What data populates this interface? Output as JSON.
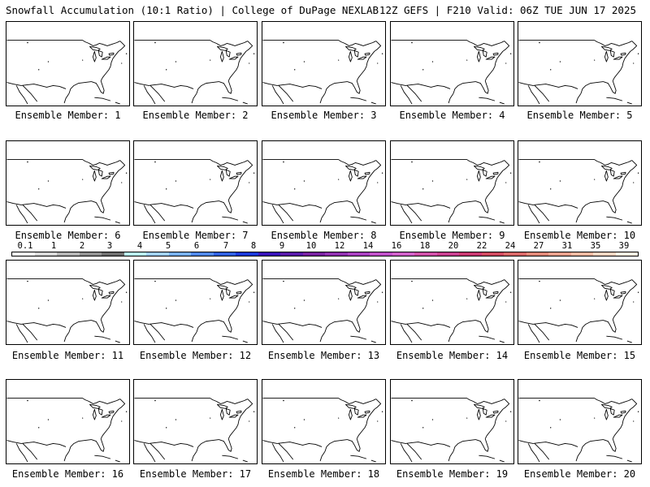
{
  "header": {
    "left_title": "Snowfall Accumulation (10:1 Ratio) | College of DuPage NEXLAB",
    "right_title": "12Z GEFS | F210 Valid: 06Z TUE JUN 17 2025"
  },
  "members": [
    {
      "label": "Ensemble Member: 1"
    },
    {
      "label": "Ensemble Member: 2"
    },
    {
      "label": "Ensemble Member: 3"
    },
    {
      "label": "Ensemble Member: 4"
    },
    {
      "label": "Ensemble Member: 5"
    },
    {
      "label": "Ensemble Member: 6"
    },
    {
      "label": "Ensemble Member: 7"
    },
    {
      "label": "Ensemble Member: 8"
    },
    {
      "label": "Ensemble Member: 9"
    },
    {
      "label": "Ensemble Member: 10"
    },
    {
      "label": "Ensemble Member: 11"
    },
    {
      "label": "Ensemble Member: 12"
    },
    {
      "label": "Ensemble Member: 13"
    },
    {
      "label": "Ensemble Member: 14"
    },
    {
      "label": "Ensemble Member: 15"
    },
    {
      "label": "Ensemble Member: 16"
    },
    {
      "label": "Ensemble Member: 17"
    },
    {
      "label": "Ensemble Member: 18"
    },
    {
      "label": "Ensemble Member: 19"
    },
    {
      "label": "Ensemble Member: 20"
    }
  ],
  "colorbar": {
    "labels": [
      "0.1",
      "1",
      "2",
      "3",
      "4",
      "5",
      "6",
      "7",
      "8",
      "9",
      "10",
      "12",
      "14",
      "16",
      "18",
      "20",
      "22",
      "24",
      "27",
      "31",
      "35",
      "39"
    ],
    "colors": [
      "#ffffff",
      "#d8d8d8",
      "#b4b4b4",
      "#909090",
      "#6e6e6e",
      "#b8f0f0",
      "#a0d0f8",
      "#78b0f0",
      "#5088e8",
      "#3060e0",
      "#1838d8",
      "#3810b8",
      "#5818a8",
      "#7820a0",
      "#9030b0",
      "#a840c0",
      "#c050c8",
      "#d060c8",
      "#d050a8",
      "#c84090",
      "#c83870",
      "#d04a60",
      "#d86868",
      "#e08878",
      "#e8a08c",
      "#f0b8a0",
      "#f8d4c0",
      "#fff0e0"
    ]
  }
}
